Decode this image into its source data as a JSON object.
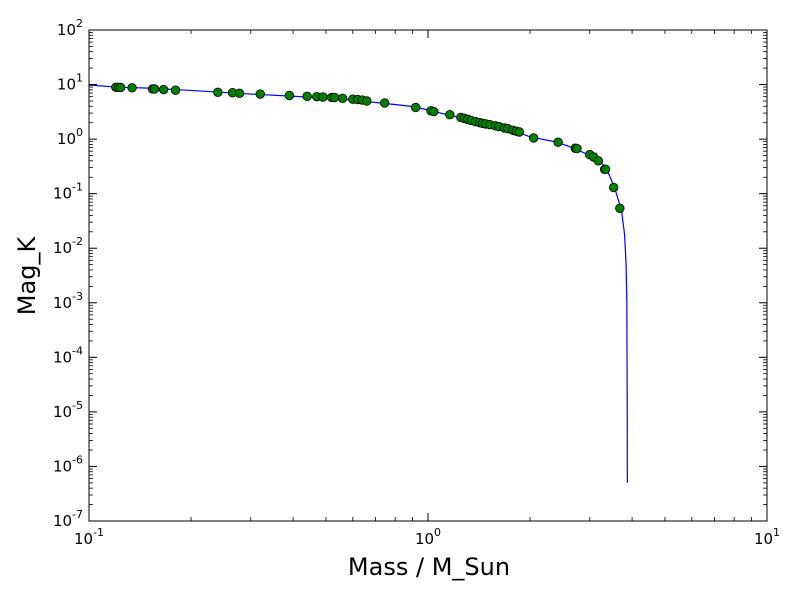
{
  "chart_data": {
    "type": "scatter",
    "xlabel": "Mass / M_Sun",
    "ylabel": "Mag_K",
    "xscale": "log",
    "yscale": "log",
    "xlim": [
      0.1,
      10
    ],
    "ylim": [
      1e-07,
      100
    ],
    "grid": false,
    "x_ticks": [
      {
        "base": "10",
        "exp": "-1",
        "value": 0.1
      },
      {
        "base": "10",
        "exp": "0",
        "value": 1
      },
      {
        "base": "10",
        "exp": "1",
        "value": 10
      }
    ],
    "y_ticks": [
      {
        "base": "10",
        "exp": "-7",
        "value": 1e-07
      },
      {
        "base": "10",
        "exp": "-6",
        "value": 1e-06
      },
      {
        "base": "10",
        "exp": "-5",
        "value": 1e-05
      },
      {
        "base": "10",
        "exp": "-4",
        "value": 0.0001
      },
      {
        "base": "10",
        "exp": "-3",
        "value": 0.001
      },
      {
        "base": "10",
        "exp": "-2",
        "value": 0.01
      },
      {
        "base": "10",
        "exp": "-1",
        "value": 0.1
      },
      {
        "base": "10",
        "exp": "0",
        "value": 1
      },
      {
        "base": "10",
        "exp": "1",
        "value": 10
      },
      {
        "base": "10",
        "exp": "2",
        "value": 100
      }
    ],
    "series": [
      {
        "kind": "line",
        "color": "#0000ff",
        "points": [
          [
            0.1,
            9.8
          ],
          [
            0.12,
            9.0
          ],
          [
            0.15,
            8.6
          ],
          [
            0.2,
            7.8
          ],
          [
            0.3,
            6.7
          ],
          [
            0.4,
            6.1
          ],
          [
            0.5,
            5.6
          ],
          [
            0.6,
            5.2
          ],
          [
            0.75,
            4.5
          ],
          [
            0.92,
            3.9
          ],
          [
            1.0,
            3.4
          ],
          [
            1.2,
            2.6
          ],
          [
            1.4,
            2.1
          ],
          [
            1.6,
            1.75
          ],
          [
            1.8,
            1.4
          ],
          [
            2.0,
            1.1
          ],
          [
            2.4,
            0.88
          ],
          [
            2.7,
            0.68
          ],
          [
            3.0,
            0.5
          ],
          [
            3.2,
            0.4
          ],
          [
            3.35,
            0.3
          ],
          [
            3.55,
            0.13
          ],
          [
            3.72,
            0.05
          ],
          [
            3.8,
            0.018
          ],
          [
            3.84,
            0.005
          ],
          [
            3.86,
            0.001
          ],
          [
            3.865,
            0.0001
          ],
          [
            3.87,
            1e-05
          ],
          [
            3.872,
            1e-06
          ],
          [
            3.873,
            5e-07
          ]
        ]
      },
      {
        "kind": "markers",
        "color": "#008000",
        "points": [
          [
            0.12,
            8.9
          ],
          [
            0.122,
            8.9
          ],
          [
            0.124,
            8.85
          ],
          [
            0.134,
            8.7
          ],
          [
            0.154,
            8.3
          ],
          [
            0.156,
            8.3
          ],
          [
            0.166,
            8.1
          ],
          [
            0.18,
            7.9
          ],
          [
            0.24,
            7.2
          ],
          [
            0.265,
            7.1
          ],
          [
            0.278,
            6.9
          ],
          [
            0.32,
            6.7
          ],
          [
            0.39,
            6.3
          ],
          [
            0.44,
            6.1
          ],
          [
            0.47,
            6.0
          ],
          [
            0.49,
            5.9
          ],
          [
            0.52,
            5.8
          ],
          [
            0.53,
            5.8
          ],
          [
            0.56,
            5.6
          ],
          [
            0.6,
            5.4
          ],
          [
            0.62,
            5.3
          ],
          [
            0.64,
            5.2
          ],
          [
            0.66,
            5.0
          ],
          [
            0.745,
            4.6
          ],
          [
            0.92,
            3.8
          ],
          [
            1.02,
            3.3
          ],
          [
            1.04,
            3.2
          ],
          [
            1.16,
            2.8
          ],
          [
            1.25,
            2.5
          ],
          [
            1.28,
            2.4
          ],
          [
            1.31,
            2.3
          ],
          [
            1.34,
            2.2
          ],
          [
            1.38,
            2.1
          ],
          [
            1.42,
            2.0
          ],
          [
            1.45,
            1.95
          ],
          [
            1.48,
            1.9
          ],
          [
            1.52,
            1.85
          ],
          [
            1.58,
            1.75
          ],
          [
            1.62,
            1.7
          ],
          [
            1.68,
            1.6
          ],
          [
            1.72,
            1.55
          ],
          [
            1.78,
            1.45
          ],
          [
            1.82,
            1.4
          ],
          [
            1.86,
            1.35
          ],
          [
            2.05,
            1.05
          ],
          [
            2.42,
            0.88
          ],
          [
            2.72,
            0.68
          ],
          [
            2.75,
            0.67
          ],
          [
            3.0,
            0.52
          ],
          [
            3.08,
            0.47
          ],
          [
            3.18,
            0.4
          ],
          [
            3.32,
            0.28
          ],
          [
            3.34,
            0.28
          ],
          [
            3.53,
            0.13
          ],
          [
            3.68,
            0.054
          ]
        ]
      }
    ]
  }
}
